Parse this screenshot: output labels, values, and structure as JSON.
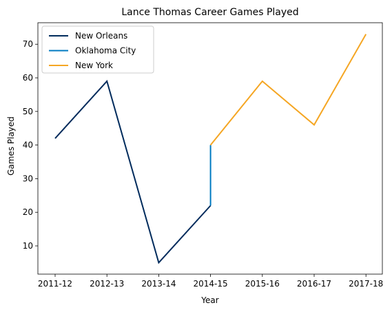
{
  "chart_data": {
    "type": "line",
    "title": "Lance Thomas Career Games Played",
    "xlabel": "Year",
    "ylabel": "Games Played",
    "categories": [
      "2011-12",
      "2012-13",
      "2013-14",
      "2014-15",
      "2015-16",
      "2016-17",
      "2017-18"
    ],
    "ylim": [
      1.6,
      76.4
    ],
    "yticks": [
      10,
      20,
      30,
      40,
      50,
      60,
      70
    ],
    "grid": false,
    "legend_position": "upper-left",
    "series": [
      {
        "name": "New Orleans",
        "color": "#002b5c",
        "points": [
          {
            "x": "2011-12",
            "y": 42
          },
          {
            "x": "2012-13",
            "y": 59
          },
          {
            "x": "2013-14",
            "y": 5
          },
          {
            "x": "2014-15",
            "y": 22
          }
        ]
      },
      {
        "name": "Oklahoma City",
        "color": "#007ac1",
        "points": [
          {
            "x": "2014-15",
            "y": 22
          },
          {
            "x": "2014-15",
            "y": 40
          }
        ]
      },
      {
        "name": "New York",
        "color": "#f5a623",
        "points": [
          {
            "x": "2014-15",
            "y": 40
          },
          {
            "x": "2015-16",
            "y": 59
          },
          {
            "x": "2016-17",
            "y": 46
          },
          {
            "x": "2017-18",
            "y": 73
          }
        ]
      }
    ]
  }
}
